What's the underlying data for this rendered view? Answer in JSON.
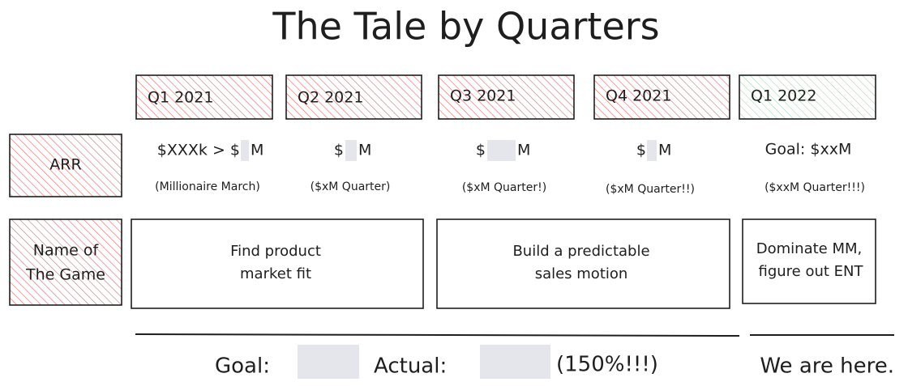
{
  "title": "The Tale by Quarters",
  "quarters": [
    "Q1 2021",
    "Q2 2021",
    "Q3 2021",
    "Q4 2021",
    "Q1 2022"
  ],
  "arr": {
    "label": "ARR",
    "cells": [
      {
        "before": "$XXXk > $",
        "after": "M",
        "note": "(Millionaire March)"
      },
      {
        "before": "$",
        "after": "M",
        "note": "($xM Quarter)"
      },
      {
        "before": "$",
        "after": "M",
        "note": "($xM Quarter!)"
      },
      {
        "before": "$",
        "after": "M",
        "note": "($xM Quarter!!)"
      },
      {
        "text": "Goal: $xxM",
        "note": "($xxM Quarter!!!)"
      }
    ]
  },
  "game": {
    "label": [
      "Name of",
      "The Game"
    ],
    "cells": [
      [
        "Find product",
        "market fit"
      ],
      [
        "Build a predictable",
        "sales motion"
      ],
      [
        "Dominate MM,",
        "figure out ENT"
      ]
    ]
  },
  "footer": {
    "goal": "Goal:",
    "actual": "Actual:",
    "ratio": "(150%!!!)",
    "status": "We are here."
  }
}
